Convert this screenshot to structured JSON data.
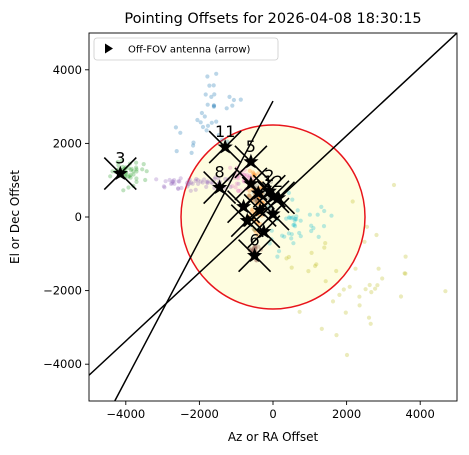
{
  "chart_data": {
    "type": "scatter",
    "title": "Pointing Offsets for 2026-04-08 18:30:15",
    "xlabel": "Az or RA Offset",
    "ylabel": "El or Dec Offset",
    "xlim": [
      -5000,
      5000
    ],
    "ylim": [
      -5000,
      5000
    ],
    "xticks": [
      -4000,
      -2000,
      0,
      2000,
      4000
    ],
    "yticks": [
      -4000,
      -2000,
      0,
      2000,
      4000
    ],
    "xtick_labels": [
      "−4000",
      "−2000",
      "0",
      "2000",
      "4000"
    ],
    "ytick_labels": [
      "−4000",
      "−2000",
      "0",
      "2000",
      "4000"
    ],
    "grid": false,
    "legend": {
      "position": "top-left",
      "entries": [
        {
          "label": "Off-FOV antenna (arrow)",
          "marker": "triangle-right"
        }
      ]
    },
    "fov_circle": {
      "center": [
        0,
        0
      ],
      "radius": 2500,
      "edge_color": "#e8141b",
      "fill_color": "#fefde0"
    },
    "diagonal_line": {
      "from": [
        -5000,
        -4300
      ],
      "to": [
        5000,
        5000
      ],
      "color": "#000000"
    },
    "offset_line": {
      "from": [
        -4300,
        -5000
      ],
      "to": [
        0,
        3150
      ],
      "color": "#000000"
    },
    "antennas": [
      {
        "label": "1",
        "x": 150,
        "y": 520,
        "show_label": false
      },
      {
        "label": "2",
        "x": -100,
        "y": 700,
        "show_label": true
      },
      {
        "label": "3",
        "x": -4150,
        "y": 1180,
        "show_label": true
      },
      {
        "label": "4",
        "x": -350,
        "y": 180,
        "show_label": false
      },
      {
        "label": "5",
        "x": -600,
        "y": 1500,
        "show_label": true
      },
      {
        "label": "6",
        "x": -500,
        "y": -1050,
        "show_label": true
      },
      {
        "label": "7",
        "x": -600,
        "y": 900,
        "show_label": false
      },
      {
        "label": "8",
        "x": -1450,
        "y": 800,
        "show_label": true
      },
      {
        "label": "9",
        "x": -250,
        "y": -400,
        "show_label": false
      },
      {
        "label": "10",
        "x": -800,
        "y": 280,
        "show_label": false
      },
      {
        "label": "11",
        "x": -1300,
        "y": 1900,
        "show_label": true
      },
      {
        "label": "12",
        "x": 0,
        "y": 550,
        "show_label": true
      },
      {
        "label": "13",
        "x": 0,
        "y": 80,
        "show_label": false
      },
      {
        "label": "14",
        "x": -700,
        "y": -100,
        "show_label": false
      },
      {
        "label": "15",
        "x": -400,
        "y": 650,
        "show_label": false
      }
    ],
    "scatter_series": [
      {
        "color": "#2ca02c",
        "center": [
          -4000,
          1200
        ],
        "spread": [
          280,
          230
        ],
        "count": 46
      },
      {
        "color": "#9467bd",
        "center": [
          -2000,
          900
        ],
        "spread": [
          650,
          120
        ],
        "count": 52
      },
      {
        "color": "#ff7f0e",
        "center": [
          -450,
          400
        ],
        "spread": [
          140,
          520
        ],
        "count": 64
      },
      {
        "color": "#8c564b",
        "center": [
          -500,
          -950
        ],
        "spread": [
          90,
          140
        ],
        "count": 26
      },
      {
        "color": "#e377c2",
        "center": [
          -950,
          1050
        ],
        "spread": [
          280,
          280
        ],
        "count": 32
      },
      {
        "color": "#1f77b4",
        "center": [
          -1600,
          2600
        ],
        "spread": [
          600,
          800
        ],
        "count": 34
      },
      {
        "color": "#17becf",
        "center": [
          500,
          -200
        ],
        "spread": [
          750,
          550
        ],
        "count": 44
      },
      {
        "color": "#bcbd22",
        "center": [
          2200,
          -1700
        ],
        "spread": [
          1400,
          1300
        ],
        "count": 42
      },
      {
        "color": "#7f7f7f",
        "center": [
          -300,
          600
        ],
        "spread": [
          250,
          300
        ],
        "count": 26
      }
    ]
  }
}
